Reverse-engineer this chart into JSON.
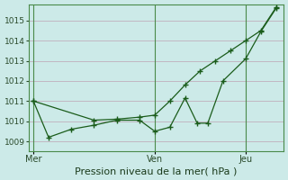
{
  "title": "Pression niveau de la mer( hPa )",
  "bg_color": "#cceae8",
  "grid_color": "#c0a8b8",
  "line_color": "#1a5c1a",
  "spine_color": "#4a8a4a",
  "ylim": [
    1008.5,
    1015.8
  ],
  "yticks": [
    1009,
    1010,
    1011,
    1012,
    1013,
    1014,
    1015
  ],
  "ylabel_fontsize": 7,
  "xlabel_fontsize": 8,
  "xtick_labels": [
    "Mer",
    "Ven",
    "Jeu"
  ],
  "xtick_positions": [
    0,
    8,
    14
  ],
  "xlim": [
    -0.3,
    16.5
  ],
  "vline_positions": [
    0,
    8,
    14
  ],
  "series1_x": [
    0,
    1,
    2.5,
    4,
    5.5,
    7,
    8,
    9,
    10,
    10.8,
    11.5,
    12.5,
    14,
    15,
    16
  ],
  "series1_y": [
    1011.0,
    1009.2,
    1009.6,
    1009.8,
    1010.05,
    1010.05,
    1009.5,
    1009.7,
    1011.15,
    1009.9,
    1009.9,
    1012.0,
    1013.1,
    1014.45,
    1015.6
  ],
  "series2_x": [
    0,
    4,
    5.5,
    7,
    8,
    9,
    10,
    11,
    12,
    13,
    14,
    15,
    16
  ],
  "series2_y": [
    1011.0,
    1010.05,
    1010.1,
    1010.2,
    1010.3,
    1011.0,
    1011.8,
    1012.5,
    1013.0,
    1013.5,
    1014.0,
    1014.5,
    1015.65
  ]
}
